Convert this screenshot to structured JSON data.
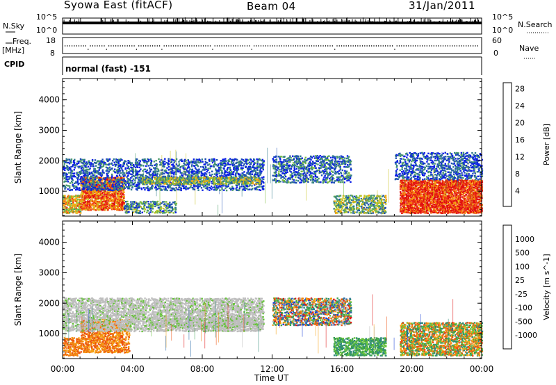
{
  "header": {
    "station": "Syowa East (fitACF)",
    "beam": "Beam 04",
    "date": "31/Jan/2011"
  },
  "strip_panels": {
    "nsky_label": "N.Sky",
    "nsearch_label": "N.Search",
    "noise_left_ticks": [
      "10^5",
      "10^0"
    ],
    "noise_right_ticks": [
      "10^5",
      "10^0"
    ],
    "freq_label": "Freq.",
    "freq_unit": "[MHz]",
    "freq_ticks": [
      "18",
      "8"
    ],
    "nave_label": "Nave",
    "nave_ticks": [
      "60",
      "0"
    ],
    "cpid_label": "CPID",
    "cpid_value": "normal (fast) -151"
  },
  "chart_data": [
    {
      "type": "heatmap",
      "panel": "power",
      "ylabel": "Slant Range [km]",
      "xlabel": "Time UT",
      "x_ticks": [
        "00:00",
        "04:00",
        "08:00",
        "12:00",
        "16:00",
        "20:00",
        "00:00"
      ],
      "xlim_hours": [
        0,
        24
      ],
      "y_ticks": [
        1000,
        2000,
        3000,
        4000
      ],
      "ylim": [
        180,
        4700
      ],
      "colorbar": {
        "label": "Power [dB]",
        "ticks": [
          "4",
          "8",
          "12",
          "16",
          "20",
          "24",
          "28"
        ],
        "colors": [
          "#0a1ee6",
          "#1e4fb4",
          "#2f7a8c",
          "#4a9a6a",
          "#7bbd3e",
          "#c9c322",
          "#f5a80f",
          "#f57a10",
          "#ef3a14",
          "#e01010"
        ]
      },
      "echo_regions": [
        {
          "t": [
            0.0,
            1.0
          ],
          "r": [
            300,
            900
          ],
          "level": 0.6
        },
        {
          "t": [
            1.0,
            3.5
          ],
          "r": [
            400,
            1500
          ],
          "level": 0.8
        },
        {
          "t": [
            0.0,
            11.5
          ],
          "r": [
            1050,
            2100
          ],
          "level": 0.15
        },
        {
          "t": [
            4.5,
            11.3
          ],
          "r": [
            1250,
            1500
          ],
          "level": 0.45
        },
        {
          "t": [
            3.5,
            6.5
          ],
          "r": [
            300,
            700
          ],
          "level": 0.3
        },
        {
          "t": [
            12.0,
            16.5
          ],
          "r": [
            1300,
            2200
          ],
          "level": 0.2
        },
        {
          "t": [
            15.5,
            18.5
          ],
          "r": [
            300,
            900
          ],
          "level": 0.4
        },
        {
          "t": [
            19.3,
            24.0
          ],
          "r": [
            300,
            1400
          ],
          "level": 0.9
        },
        {
          "t": [
            19.0,
            24.0
          ],
          "r": [
            1400,
            2300
          ],
          "level": 0.15
        }
      ]
    },
    {
      "type": "heatmap",
      "panel": "velocity",
      "ylabel": "Slant Range [km]",
      "xlabel": "Time UT",
      "x_ticks": [
        "00:00",
        "04:00",
        "08:00",
        "12:00",
        "16:00",
        "20:00",
        "00:00"
      ],
      "xlim_hours": [
        0,
        24
      ],
      "y_ticks": [
        1000,
        2000,
        3000,
        4000
      ],
      "ylim": [
        180,
        4700
      ],
      "colorbar": {
        "label": "Velocity [m s^-1]",
        "ticks": [
          "1000",
          "500",
          "100",
          "25",
          "-25",
          "-100",
          "-500",
          "-1000"
        ],
        "colors": [
          "#1a3fd6",
          "#2a6aa8",
          "#2e8a7a",
          "#3aa04a",
          "#66c23a",
          "#bebebe",
          "#f5a010",
          "#f07c10",
          "#ec5010",
          "#e01818"
        ]
      },
      "echo_regions": [
        {
          "t": [
            0.0,
            1.0
          ],
          "r": [
            300,
            900
          ],
          "kind": "orange"
        },
        {
          "t": [
            1.0,
            3.8
          ],
          "r": [
            400,
            1500
          ],
          "kind": "orange"
        },
        {
          "t": [
            0.0,
            11.5
          ],
          "r": [
            1100,
            2200
          ],
          "kind": "grey"
        },
        {
          "t": [
            5.0,
            11.3
          ],
          "r": [
            1250,
            1550
          ],
          "kind": "grey"
        },
        {
          "t": [
            12.0,
            16.5
          ],
          "r": [
            1300,
            2200
          ],
          "kind": "mixed"
        },
        {
          "t": [
            15.5,
            18.5
          ],
          "r": [
            300,
            900
          ],
          "kind": "green"
        },
        {
          "t": [
            19.3,
            24.0
          ],
          "r": [
            300,
            1400
          ],
          "kind": "mixed-green-orange"
        }
      ]
    }
  ]
}
